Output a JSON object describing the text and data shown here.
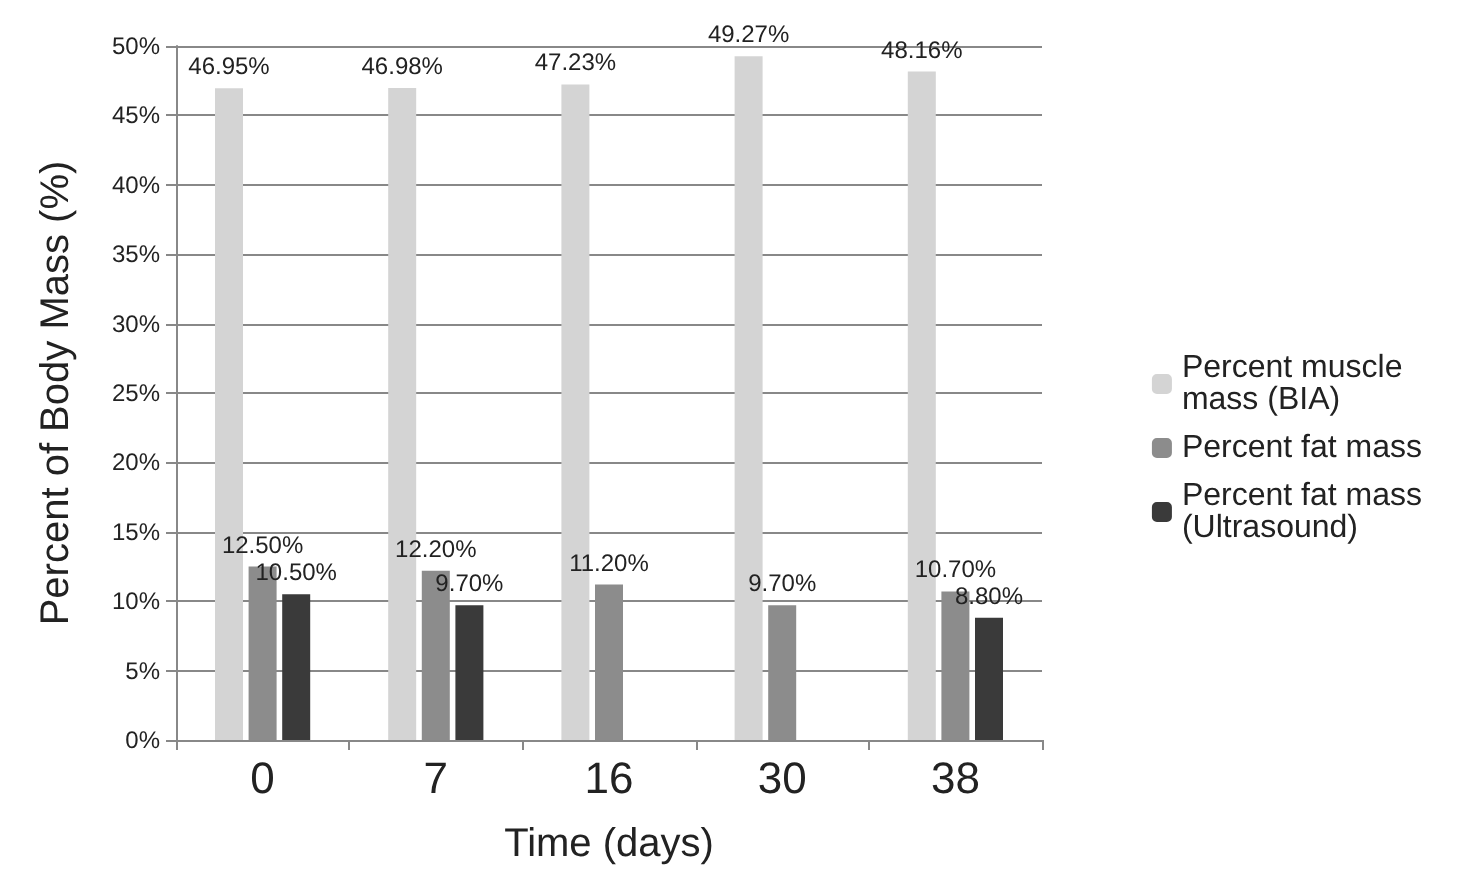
{
  "chart_data": {
    "type": "bar",
    "xlabel": "Time (days)",
    "ylabel": "Percent of Body Mass (%)",
    "categories": [
      "0",
      "7",
      "16",
      "30",
      "38"
    ],
    "series": [
      {
        "name": "Percent muscle mass (BIA)",
        "color": "#d4d4d4",
        "values": [
          46.95,
          46.98,
          47.23,
          49.27,
          48.16
        ],
        "value_labels": [
          "46.95%",
          "46.98%",
          "47.23%",
          "49.27%",
          "48.16%"
        ]
      },
      {
        "name": "Percent fat mass",
        "color": "#8c8c8c",
        "values": [
          12.5,
          12.2,
          11.2,
          9.7,
          10.7
        ],
        "value_labels": [
          "12.50%",
          "12.20%",
          "11.20%",
          "9.70%",
          "10.70%"
        ]
      },
      {
        "name": "Percent fat mass (Ultrasound)",
        "color": "#3a3a3a",
        "values": [
          10.5,
          9.7,
          null,
          null,
          8.8
        ],
        "value_labels": [
          "10.50%",
          "9.70%",
          null,
          null,
          "8.80%"
        ]
      }
    ],
    "ylim": [
      0,
      50
    ],
    "yticks": [
      {
        "value": 0,
        "label": "0%"
      },
      {
        "value": 5,
        "label": "5%"
      },
      {
        "value": 10,
        "label": "10%"
      },
      {
        "value": 15,
        "label": "15%"
      },
      {
        "value": 20,
        "label": "20%"
      },
      {
        "value": 25,
        "label": "25%"
      },
      {
        "value": 30,
        "label": "30%"
      },
      {
        "value": 35,
        "label": "35%"
      },
      {
        "value": 40,
        "label": "40%"
      },
      {
        "value": 45,
        "label": "45%"
      },
      {
        "value": 50,
        "label": "50%"
      }
    ],
    "grid": "y",
    "legend": "right"
  }
}
